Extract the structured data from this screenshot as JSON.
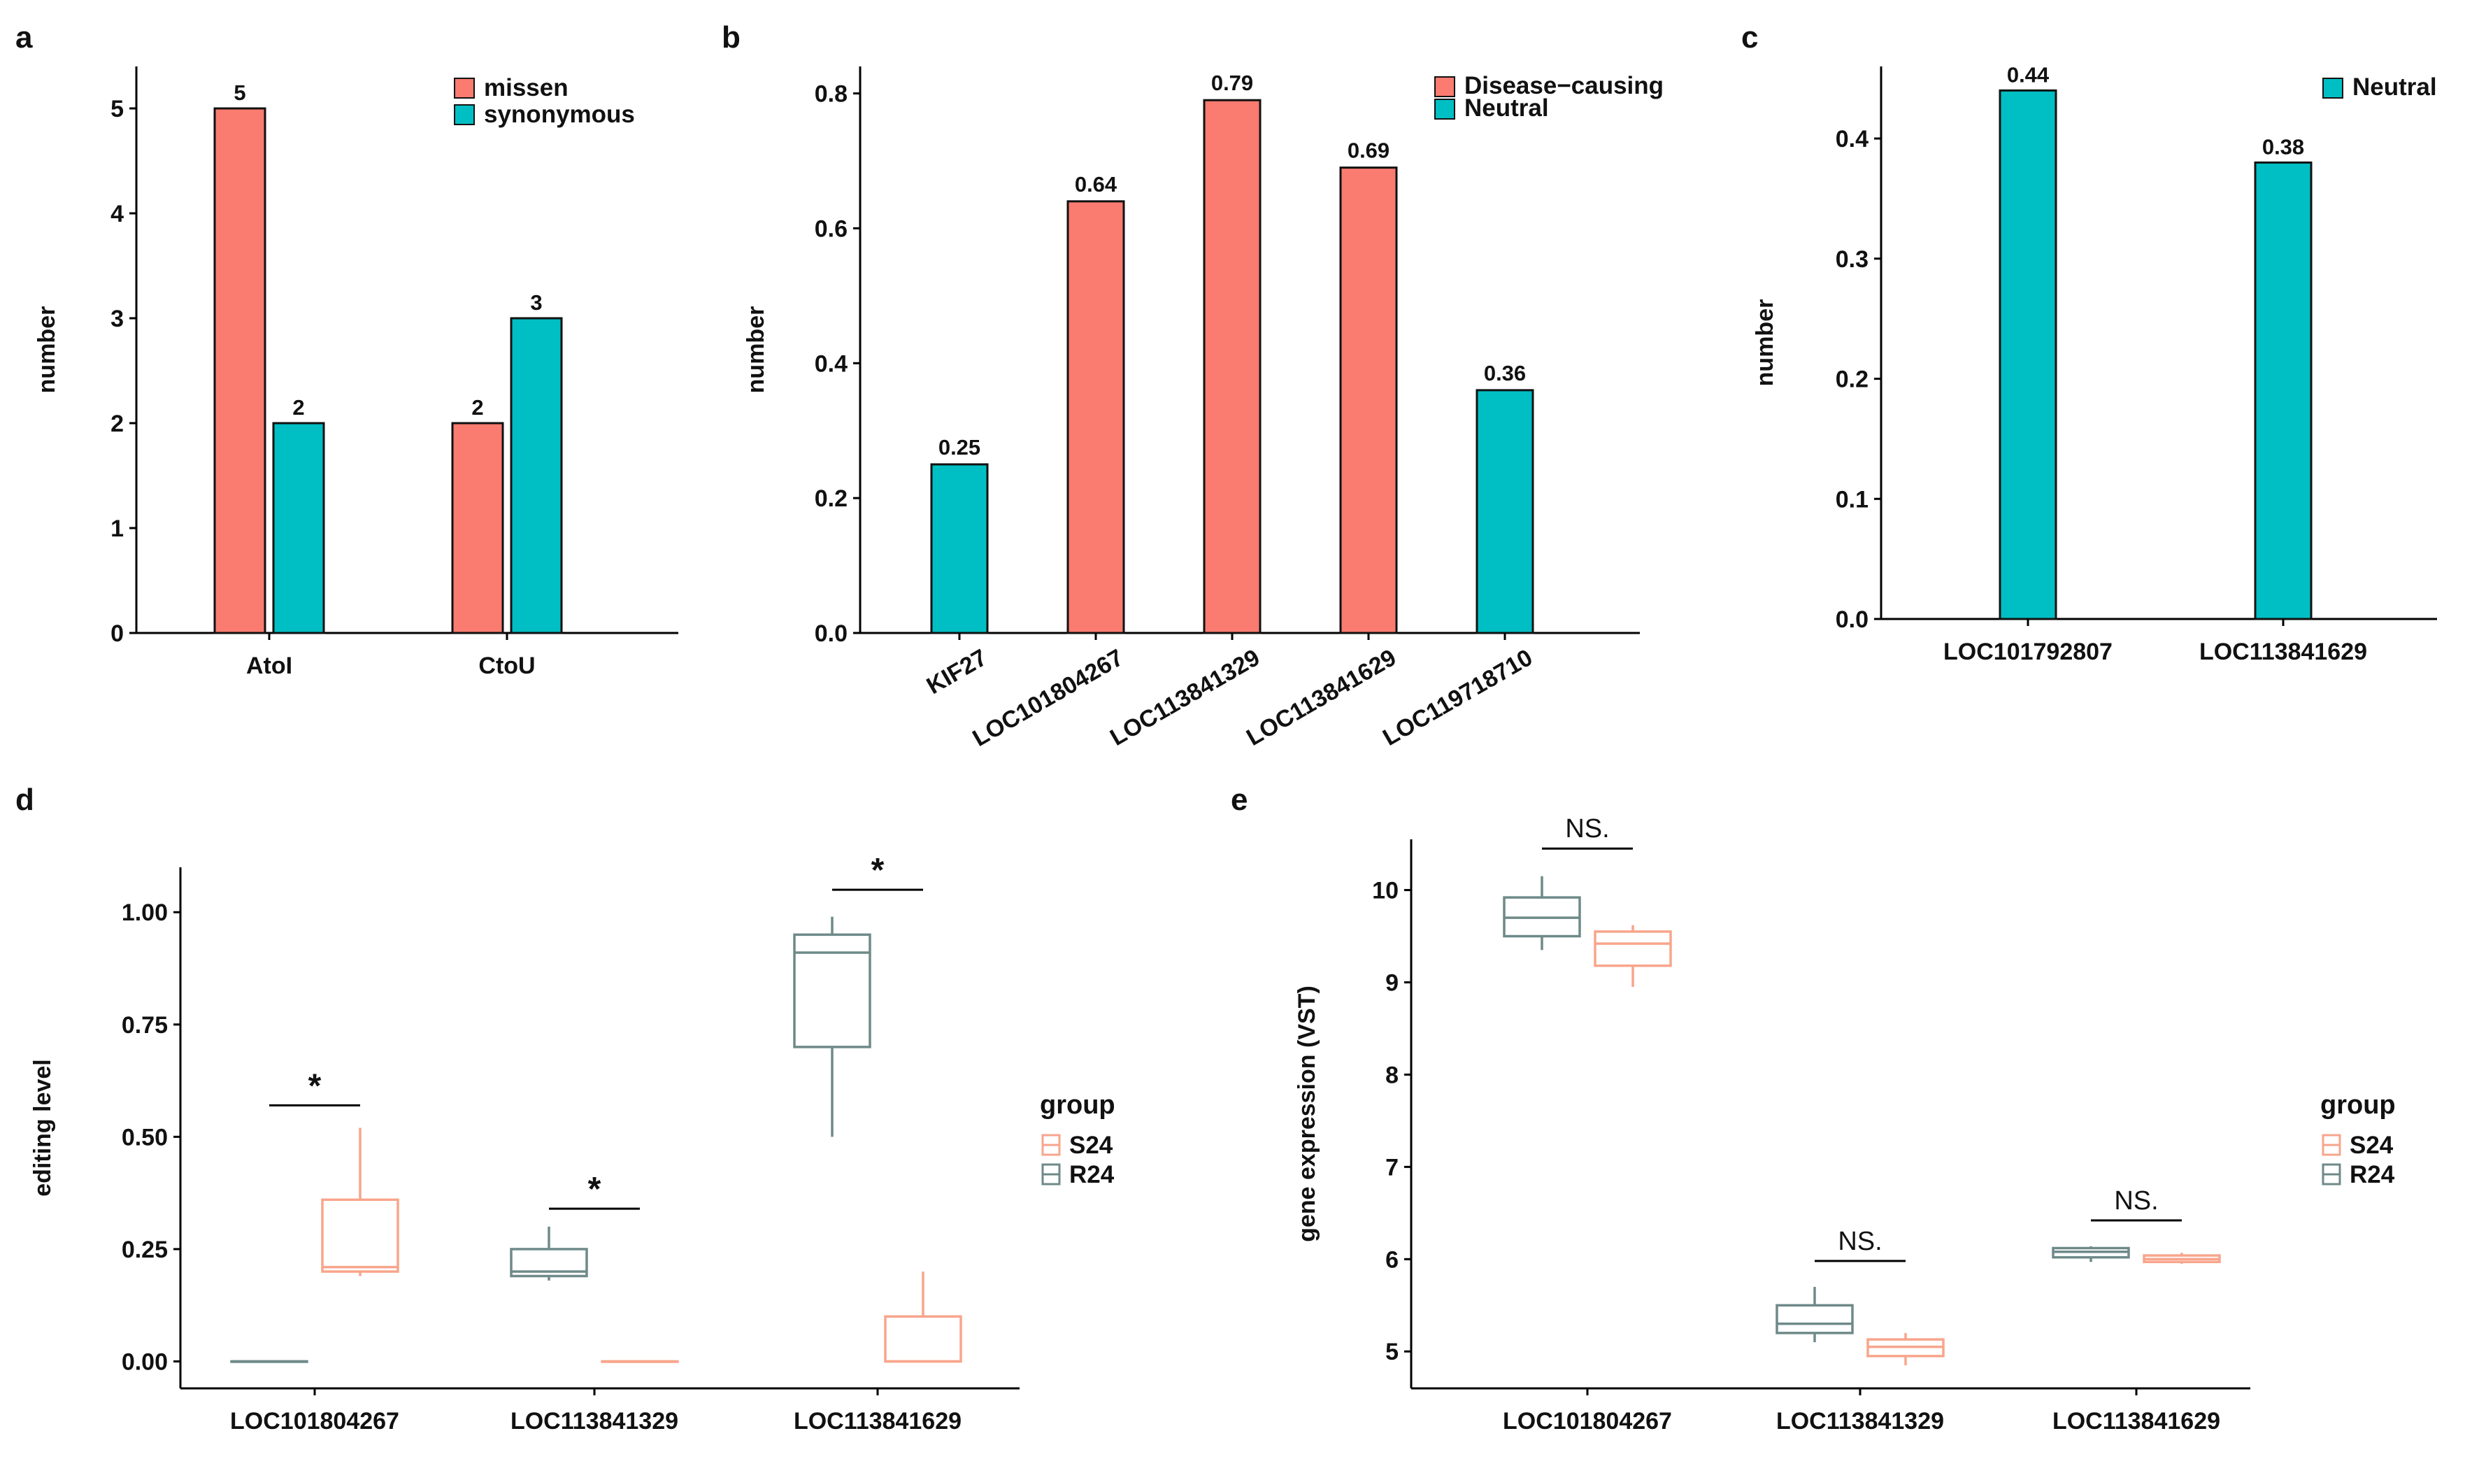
{
  "colors": {
    "red": "#FA7B70",
    "teal": "#00BFC4",
    "S24": "#F8A58C",
    "R24": "#6E8A89"
  },
  "chart_data": [
    {
      "panel": "a",
      "type": "bar",
      "categories": [
        "AtoI",
        "CtoU"
      ],
      "series": [
        {
          "name": "missen",
          "values": [
            5,
            2
          ],
          "color": "#FA7B70"
        },
        {
          "name": "synonymous",
          "values": [
            2,
            3
          ],
          "color": "#00BFC4"
        }
      ],
      "value_labels": [
        [
          "5",
          "2"
        ],
        [
          "2",
          "3"
        ]
      ],
      "ylabel": "number",
      "ylim": [
        0,
        5.4
      ],
      "yticks": [
        "0",
        "1",
        "2",
        "3",
        "4",
        "5"
      ],
      "legend": "top-right"
    },
    {
      "panel": "b",
      "type": "bar",
      "categories": [
        "KIF27",
        "LOC101804267",
        "LOC113841329",
        "LOC113841629",
        "LOC119718710"
      ],
      "values": [
        0.25,
        0.64,
        0.79,
        0.69,
        0.36
      ],
      "value_labels": [
        "0.25",
        "0.64",
        "0.79",
        "0.69",
        "0.36"
      ],
      "bar_group": [
        "Neutral",
        "Disease−causing",
        "Disease−causing",
        "Disease−causing",
        "Neutral"
      ],
      "legend_entries": [
        {
          "name": "Disease−causing",
          "color": "#FA7B70"
        },
        {
          "name": "Neutral",
          "color": "#00BFC4"
        }
      ],
      "ylabel": "number",
      "ylim": [
        0,
        0.84
      ],
      "yticks": [
        "0.0",
        "0.2",
        "0.4",
        "0.6",
        "0.8"
      ],
      "xtick_rotation": -30,
      "legend": "top-right"
    },
    {
      "panel": "c",
      "type": "bar",
      "categories": [
        "LOC101792807",
        "LOC113841629"
      ],
      "values": [
        0.44,
        0.38
      ],
      "value_labels": [
        "0.44",
        "0.38"
      ],
      "legend_entries": [
        {
          "name": "Neutral",
          "color": "#00BFC4"
        }
      ],
      "ylabel": "number",
      "ylim": [
        0,
        0.46
      ],
      "yticks": [
        "0.0",
        "0.1",
        "0.2",
        "0.3",
        "0.4"
      ],
      "legend": "top-right"
    },
    {
      "panel": "d",
      "type": "box",
      "categories": [
        "LOC101804267",
        "LOC113841329",
        "LOC113841629"
      ],
      "ylabel": "editing level",
      "ylim": [
        -0.06,
        1.1
      ],
      "yticks": [
        "0.00",
        "0.25",
        "0.50",
        "0.75",
        "1.00"
      ],
      "boxes": [
        {
          "cat": 0,
          "group": "R24",
          "min": 0,
          "q1": 0,
          "median": 0,
          "q3": 0,
          "max": 0
        },
        {
          "cat": 0,
          "group": "S24",
          "min": 0.19,
          "q1": 0.2,
          "median": 0.21,
          "q3": 0.36,
          "max": 0.52
        },
        {
          "cat": 1,
          "group": "R24",
          "min": 0.18,
          "q1": 0.19,
          "median": 0.2,
          "q3": 0.25,
          "max": 0.3
        },
        {
          "cat": 1,
          "group": "S24",
          "min": 0,
          "q1": 0,
          "median": 0,
          "q3": 0,
          "max": 0
        },
        {
          "cat": 2,
          "group": "R24",
          "min": 0.5,
          "q1": 0.7,
          "median": 0.91,
          "q3": 0.95,
          "max": 0.99
        },
        {
          "cat": 2,
          "group": "S24",
          "min": 0,
          "q1": 0,
          "median": 0,
          "q3": 0.1,
          "max": 0.2
        }
      ],
      "significance": [
        {
          "cat": 0,
          "label": "*",
          "y": 0.57
        },
        {
          "cat": 1,
          "label": "*",
          "y": 0.34
        },
        {
          "cat": 2,
          "label": "*",
          "y": 1.05
        }
      ],
      "legend_title": "group",
      "legend": "right"
    },
    {
      "panel": "e",
      "type": "box",
      "categories": [
        "LOC101804267",
        "LOC113841329",
        "LOC113841629"
      ],
      "ylabel": "gene expression (VST)",
      "ylim": [
        4.6,
        10.55
      ],
      "yticks": [
        "5",
        "6",
        "7",
        "8",
        "9",
        "10"
      ],
      "boxes": [
        {
          "cat": 0,
          "group": "R24",
          "min": 9.35,
          "q1": 9.5,
          "median": 9.7,
          "q3": 9.92,
          "max": 10.15
        },
        {
          "cat": 0,
          "group": "S24",
          "min": 8.95,
          "q1": 9.18,
          "median": 9.42,
          "q3": 9.55,
          "max": 9.62
        },
        {
          "cat": 1,
          "group": "R24",
          "min": 5.1,
          "q1": 5.2,
          "median": 5.3,
          "q3": 5.5,
          "max": 5.7
        },
        {
          "cat": 1,
          "group": "S24",
          "min": 4.85,
          "q1": 4.95,
          "median": 5.05,
          "q3": 5.13,
          "max": 5.2
        },
        {
          "cat": 2,
          "group": "R24",
          "min": 5.97,
          "q1": 6.02,
          "median": 6.08,
          "q3": 6.12,
          "max": 6.14
        },
        {
          "cat": 2,
          "group": "S24",
          "min": 5.95,
          "q1": 5.97,
          "median": 6.0,
          "q3": 6.04,
          "max": 6.07
        }
      ],
      "significance": [
        {
          "cat": 0,
          "label": "NS.",
          "y": 10.45
        },
        {
          "cat": 1,
          "label": "NS.",
          "y": 5.98
        },
        {
          "cat": 2,
          "label": "NS.",
          "y": 6.42
        }
      ],
      "legend_title": "group",
      "legend": "right"
    }
  ],
  "legend_groups": [
    {
      "name": "S24",
      "color": "#F8A58C"
    },
    {
      "name": "R24",
      "color": "#6E8A89"
    }
  ]
}
